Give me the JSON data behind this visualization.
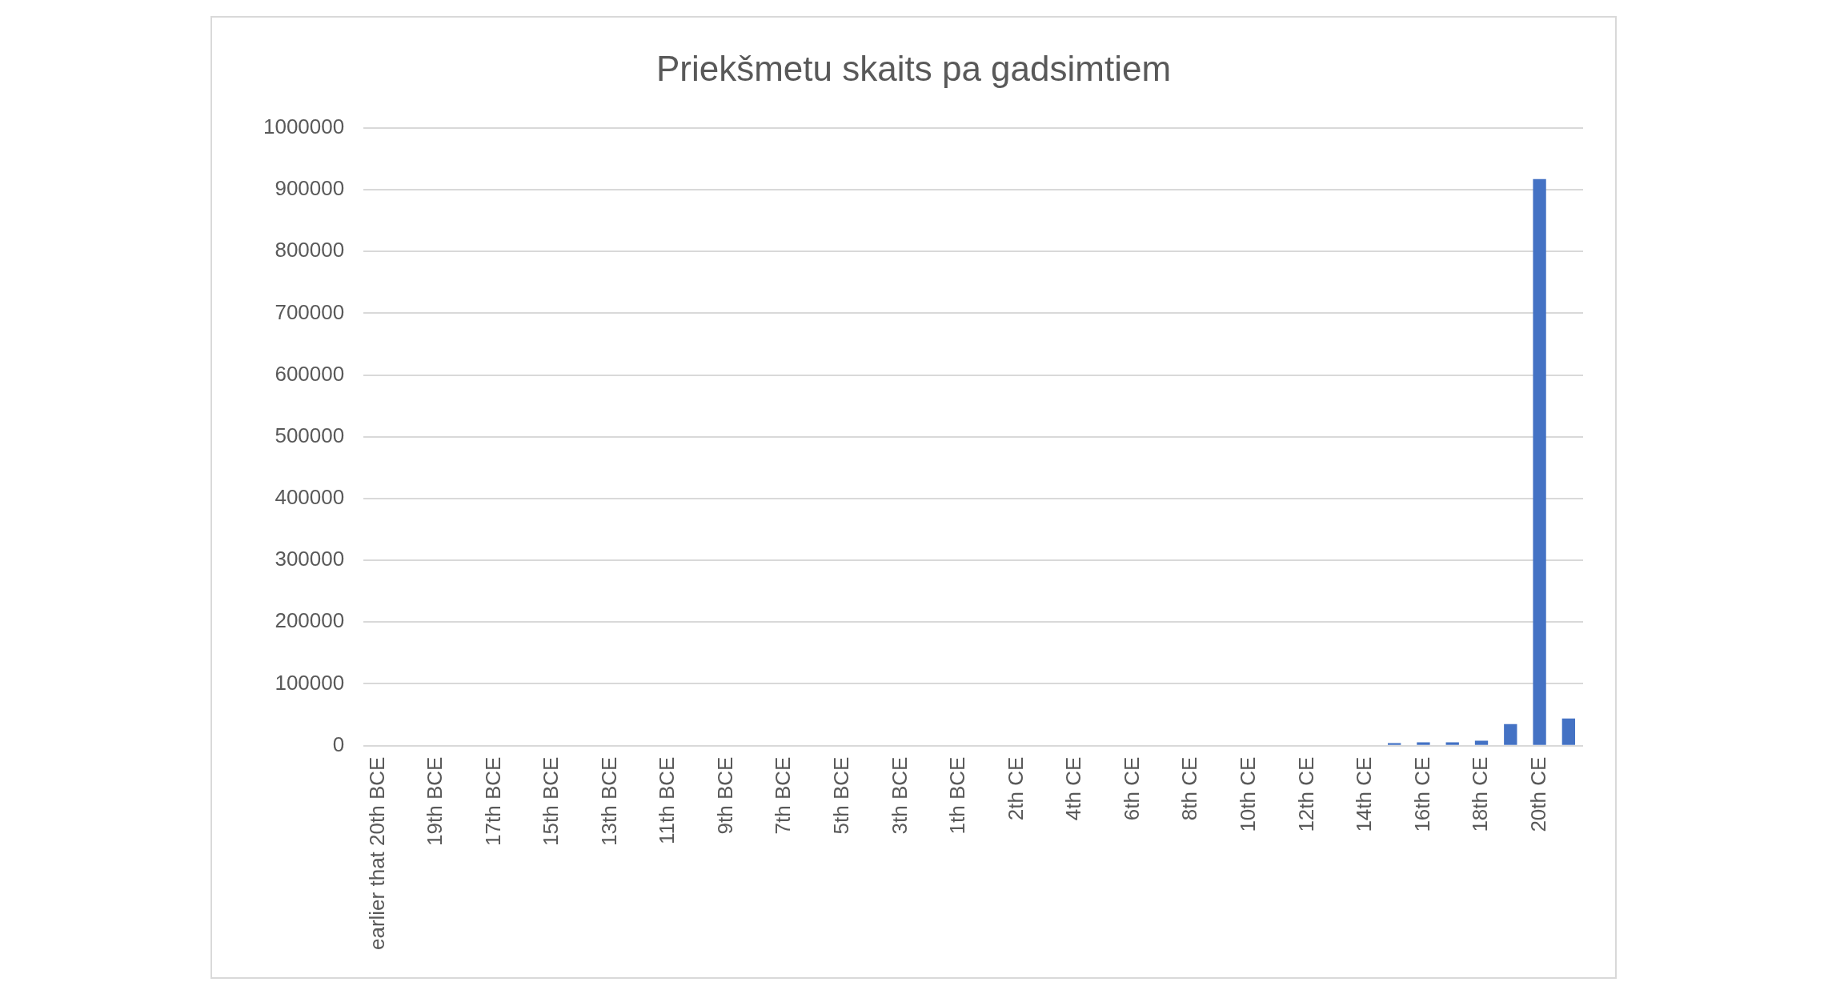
{
  "chart_data": {
    "type": "bar",
    "title": "Priekšmetu skaits pa gadsimtiem",
    "categories": [
      "earlier that 20th BCE",
      null,
      "19th BCE",
      null,
      "17th BCE",
      null,
      "15th BCE",
      null,
      "13th BCE",
      null,
      "11th BCE",
      null,
      "9th BCE",
      null,
      "7th BCE",
      null,
      "5th BCE",
      null,
      "3th BCE",
      null,
      "1th BCE",
      null,
      "2th CE",
      null,
      "4th CE",
      null,
      "6th CE",
      null,
      "8th CE",
      null,
      "10th CE",
      null,
      "12th CE",
      null,
      "14th CE",
      null,
      "16th CE",
      null,
      "18th CE",
      null,
      "20th CE",
      null
    ],
    "values": [
      0,
      0,
      0,
      0,
      0,
      0,
      0,
      0,
      0,
      0,
      0,
      0,
      0,
      0,
      0,
      0,
      0,
      0,
      0,
      0,
      0,
      0,
      0,
      0,
      0,
      0,
      0,
      0,
      0,
      0,
      0,
      0,
      0,
      0,
      0,
      4000,
      5500,
      5500,
      8000,
      35000,
      917000,
      44000
    ],
    "color": "#4472c4",
    "ylim": [
      0,
      1000000
    ],
    "yticks": [
      0,
      100000,
      200000,
      300000,
      400000,
      500000,
      600000,
      700000,
      800000,
      900000,
      1000000
    ],
    "grid": "y",
    "legend": false
  }
}
